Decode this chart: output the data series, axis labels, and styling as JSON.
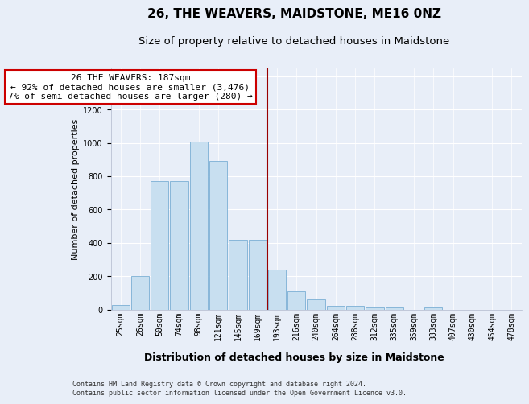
{
  "title": "26, THE WEAVERS, MAIDSTONE, ME16 0NZ",
  "subtitle": "Size of property relative to detached houses in Maidstone",
  "xlabel": "Distribution of detached houses by size in Maidstone",
  "ylabel": "Number of detached properties",
  "categories": [
    "25sqm",
    "26sqm",
    "50sqm",
    "74sqm",
    "98sqm",
    "121sqm",
    "145sqm",
    "169sqm",
    "193sqm",
    "216sqm",
    "240sqm",
    "264sqm",
    "288sqm",
    "312sqm",
    "335sqm",
    "359sqm",
    "383sqm",
    "407sqm",
    "430sqm",
    "454sqm",
    "478sqm"
  ],
  "bar_values": [
    25,
    200,
    770,
    770,
    1010,
    890,
    420,
    420,
    240,
    110,
    60,
    20,
    20,
    10,
    10,
    0,
    10,
    0,
    0,
    0,
    0
  ],
  "bar_color": "#c8dff0",
  "bar_edge_color": "#7aafd4",
  "vline_x": 7.5,
  "vline_color": "#990000",
  "annotation_text": "26 THE WEAVERS: 187sqm\n← 92% of detached houses are smaller (3,476)\n7% of semi-detached houses are larger (280) →",
  "annotation_box_facecolor": "#ffffff",
  "annotation_box_edgecolor": "#cc0000",
  "ylim": [
    0,
    1450
  ],
  "yticks": [
    0,
    200,
    400,
    600,
    800,
    1000,
    1200,
    1400
  ],
  "bg_color": "#e8eef8",
  "grid_color": "#ffffff",
  "footer_text": "Contains HM Land Registry data © Crown copyright and database right 2024.\nContains public sector information licensed under the Open Government Licence v3.0.",
  "title_fontsize": 11,
  "subtitle_fontsize": 9.5,
  "xlabel_fontsize": 9,
  "ylabel_fontsize": 8,
  "tick_fontsize": 7,
  "annotation_fontsize": 8,
  "footer_fontsize": 6
}
